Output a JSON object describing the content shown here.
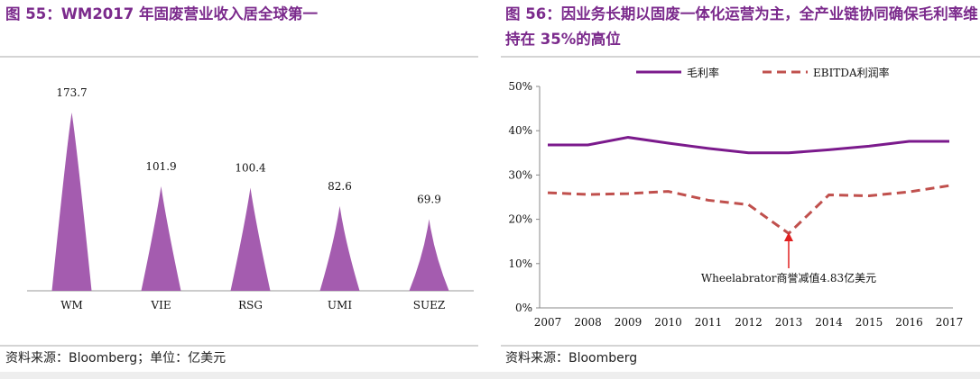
{
  "chart_data": [
    {
      "type": "peak",
      "title": "图 55：WM2017 年固废营业收入居全球第一",
      "categories": [
        "WM",
        "VIE",
        "RSG",
        "UMI",
        "SUEZ"
      ],
      "values": [
        173.7,
        101.9,
        100.4,
        82.6,
        69.9
      ],
      "color": "#9a4aa6",
      "ylim": [
        0,
        173.7
      ],
      "source": "资料来源：Bloomberg；单位：亿美元"
    },
    {
      "type": "line",
      "title": "图 56：因业务长期以固废一体化运营为主，全产业链协同确保毛利率维持在 35%的高位",
      "categories": [
        "2007",
        "2008",
        "2009",
        "2010",
        "2011",
        "2012",
        "2013",
        "2014",
        "2015",
        "2016",
        "2017"
      ],
      "series": [
        {
          "name": "毛利率",
          "color": "#7b1a8c",
          "dash": false,
          "values": [
            36.8,
            36.8,
            38.5,
            37.2,
            36.0,
            35.0,
            35.0,
            35.7,
            36.5,
            37.6,
            37.6
          ]
        },
        {
          "name": "EBITDA利润率",
          "color": "#c0504d",
          "dash": true,
          "values": [
            26.0,
            25.6,
            25.8,
            26.3,
            24.3,
            23.3,
            16.8,
            25.5,
            25.3,
            26.2,
            27.6
          ]
        }
      ],
      "ylim": [
        0,
        50
      ],
      "yticks": [
        {
          "value": 0,
          "label": "0%"
        },
        {
          "value": 10,
          "label": "10%"
        },
        {
          "value": 20,
          "label": "20%"
        },
        {
          "value": 30,
          "label": "30%"
        },
        {
          "value": 40,
          "label": "40%"
        },
        {
          "value": 50,
          "label": "50%"
        }
      ],
      "annotation": "Wheelabrator商誉减值4.83亿美元",
      "source": "资料来源：Bloomberg"
    }
  ]
}
